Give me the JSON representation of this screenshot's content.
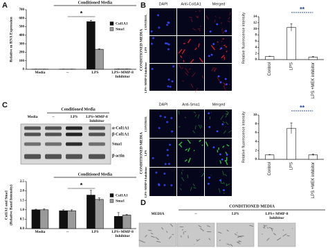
{
  "panel_labels": [
    "A",
    "B",
    "C",
    "D"
  ],
  "chart_data": [
    {
      "type": "bar",
      "y_label": [
        "Relative m RNA Expression"
      ],
      "categories": [
        "Media",
        "--",
        "LPS",
        "LPS+MMP-8 Inhibitor"
      ],
      "series": [
        {
          "name": "Col1A1",
          "color": "#111111",
          "values": [
            2,
            2,
            560,
            3
          ],
          "errors": [
            1,
            1,
            15,
            1
          ]
        },
        {
          "name": "Sma1",
          "color": "#9a9a9a",
          "values": [
            2,
            2,
            235,
            3
          ],
          "errors": [
            1,
            1,
            6,
            1
          ]
        }
      ],
      "ylim": [
        0,
        700
      ],
      "yticks": [
        0,
        100,
        200,
        300,
        400,
        500,
        600,
        700
      ],
      "legend": "upper right",
      "bracket_label": "Conditioned Media",
      "annotation": "*"
    },
    {
      "type": "bar",
      "y_label": [
        "Relative fluorescence intensity"
      ],
      "categories": [
        "Control",
        "LPS",
        "LPS +MEK inhibitor"
      ],
      "values": [
        1,
        10.5,
        0.8
      ],
      "errors": [
        0.1,
        1.2,
        0.2
      ],
      "color": "#ffffff",
      "ylim": [
        0,
        14
      ],
      "yticks": [
        0,
        2,
        4,
        6,
        8,
        10,
        12,
        14
      ],
      "annotation": "**"
    },
    {
      "type": "bar",
      "y_label": [
        "Relative fluorescence intensity"
      ],
      "categories": [
        "Control",
        "LPS",
        "LPS +MEK inhibitor"
      ],
      "values": [
        1,
        7,
        1
      ],
      "errors": [
        0.1,
        1.2,
        0.2
      ],
      "color": "#ffffff",
      "ylim": [
        0,
        10
      ],
      "yticks": [
        0,
        2,
        4,
        6,
        8,
        10
      ],
      "annotation": "**"
    },
    {
      "type": "bar",
      "y_label": [
        "Col1A1 and Sma1",
        "(Relative Band Intensity)"
      ],
      "categories": [
        "Media",
        "--",
        "LPS",
        "LPS+MMP-8 Inhibitor"
      ],
      "series": [
        {
          "name": "Col1A1",
          "color": "#111111",
          "values": [
            1.0,
            0.95,
            1.78,
            0.65
          ],
          "errors": [
            0.03,
            0.05,
            0.25,
            0.2
          ]
        },
        {
          "name": "Sma1",
          "color": "#9a9a9a",
          "values": [
            1.0,
            0.95,
            1.55,
            0.72
          ],
          "errors": [
            0.05,
            0.05,
            0.08,
            0.03
          ]
        }
      ],
      "ylim": [
        0,
        2.5
      ],
      "yticks": [
        {
          "value": 0,
          "label": "0.0"
        },
        0.5,
        {
          "value": 1,
          "label": "1.0"
        },
        1.5,
        {
          "value": 2,
          "label": "2.0"
        },
        2.5
      ],
      "legend": "upper right",
      "bracket_label": "Conditioned Media",
      "annotation": "*"
    }
  ],
  "microscopy": [
    {
      "columns": [
        "DAPI",
        "Anti-Col1A1",
        "Merged"
      ],
      "group_label": "CONDITIONED MEDIA",
      "rows": [
        "CONTROL",
        "LPS",
        "LPS+MMP-8 Inhibitor"
      ]
    },
    {
      "columns": [
        "DAPI",
        "Anti-Sma1",
        "Merged"
      ],
      "group_label": "CONDITIONED MEDIA",
      "rows": [
        "CONTROL",
        "LPS",
        "LPS+MMP-8 Inhibitor"
      ]
    }
  ],
  "western_blot": {
    "group_label": "Conditioned Media",
    "columns": [
      "Media",
      "--",
      "LPS",
      "LPS+MMP-8 Inhibitor"
    ],
    "bands": [
      "α-Col1A1",
      "β-Col1A1",
      "Sma1",
      "β-actin"
    ]
  },
  "phase_contrast": {
    "group_label": "CONDITIONED MEDIA",
    "columns": [
      "MEDIA",
      "--",
      "LPS",
      "LPS+ MMP-8 Inhibitor"
    ]
  }
}
